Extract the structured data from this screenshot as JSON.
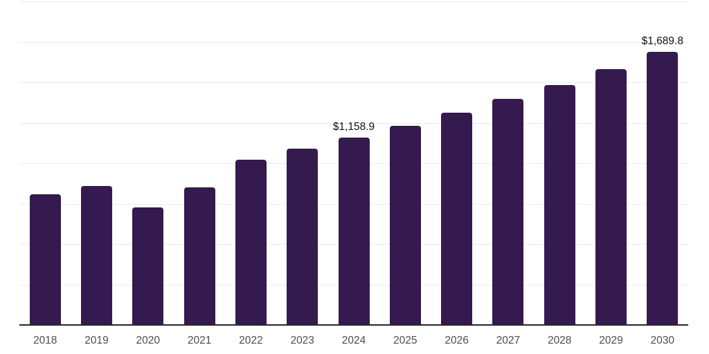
{
  "chart_data": {
    "type": "bar",
    "title": "",
    "xlabel": "",
    "ylabel": "",
    "categories": [
      "2018",
      "2019",
      "2020",
      "2021",
      "2022",
      "2023",
      "2024",
      "2025",
      "2026",
      "2027",
      "2028",
      "2029",
      "2030"
    ],
    "values": [
      806,
      858,
      727,
      849,
      1022,
      1088,
      1158.9,
      1233,
      1312,
      1396,
      1485,
      1583,
      1689.8
    ],
    "value_labels": [
      {
        "category": "2024",
        "text": "$1,158.9"
      },
      {
        "category": "2030",
        "text": "$1,689.8"
      }
    ],
    "ylim": [
      0,
      2000
    ],
    "grid_step": 250,
    "grid": true,
    "legend": false,
    "y_axis_labels_visible": false,
    "colors": {
      "bar": "#341a4f",
      "grid_line": "#ececec",
      "axis_line": "#262626",
      "tick_label": "#4d4d4d",
      "value_label": "#111111",
      "background": "#ffffff"
    }
  }
}
